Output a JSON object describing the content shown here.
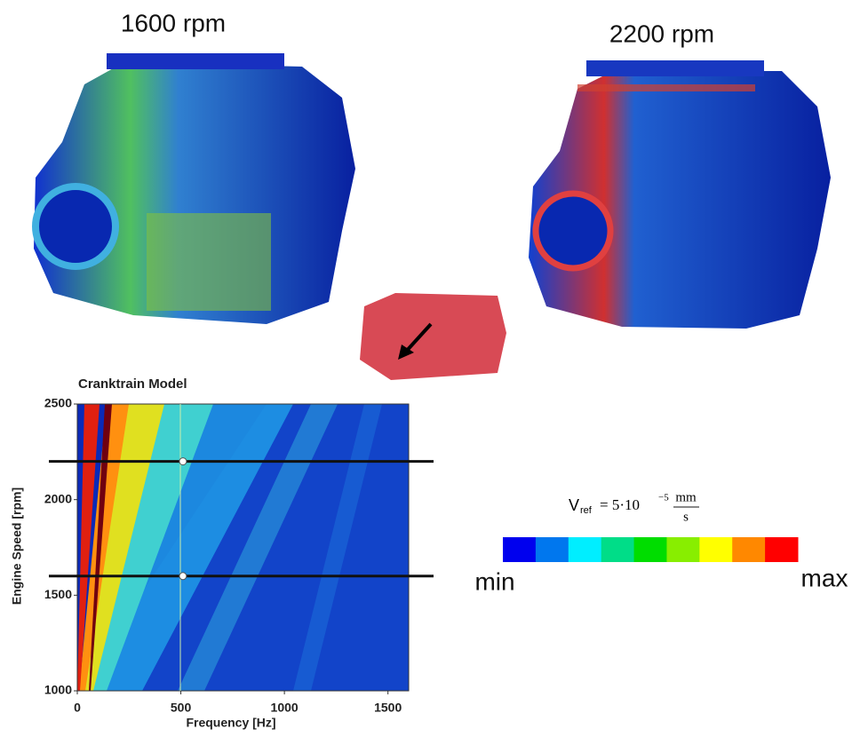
{
  "labels": {
    "left": "1600 rpm",
    "right": "2200 rpm"
  },
  "chart_data": {
    "type": "heatmap",
    "title": "Cranktrain Model",
    "x_label": "Frequency [Hz]",
    "y_label": "Engine Speed [rpm]",
    "xlim": [
      0,
      1600
    ],
    "xticks": [
      0,
      500,
      1000,
      1500
    ],
    "ylim": [
      1000,
      2500
    ],
    "yticks": [
      1000,
      1500,
      2000,
      2500
    ],
    "speed_lines": [
      2200,
      1600
    ],
    "marker_frequency": 510,
    "colorbar": {
      "min_label": "min",
      "max_label": "max",
      "colors": [
        "#0000ee",
        "#0077ee",
        "#00eeff",
        "#00dd88",
        "#00dd00",
        "#88ee00",
        "#ffff00",
        "#ff8800",
        "#ff0000"
      ],
      "formula": {
        "symbol": "V",
        "subscript": "ref",
        "equals": "= 5·10",
        "exponent": "−5",
        "numerator": "mm",
        "denominator": "s"
      }
    }
  }
}
